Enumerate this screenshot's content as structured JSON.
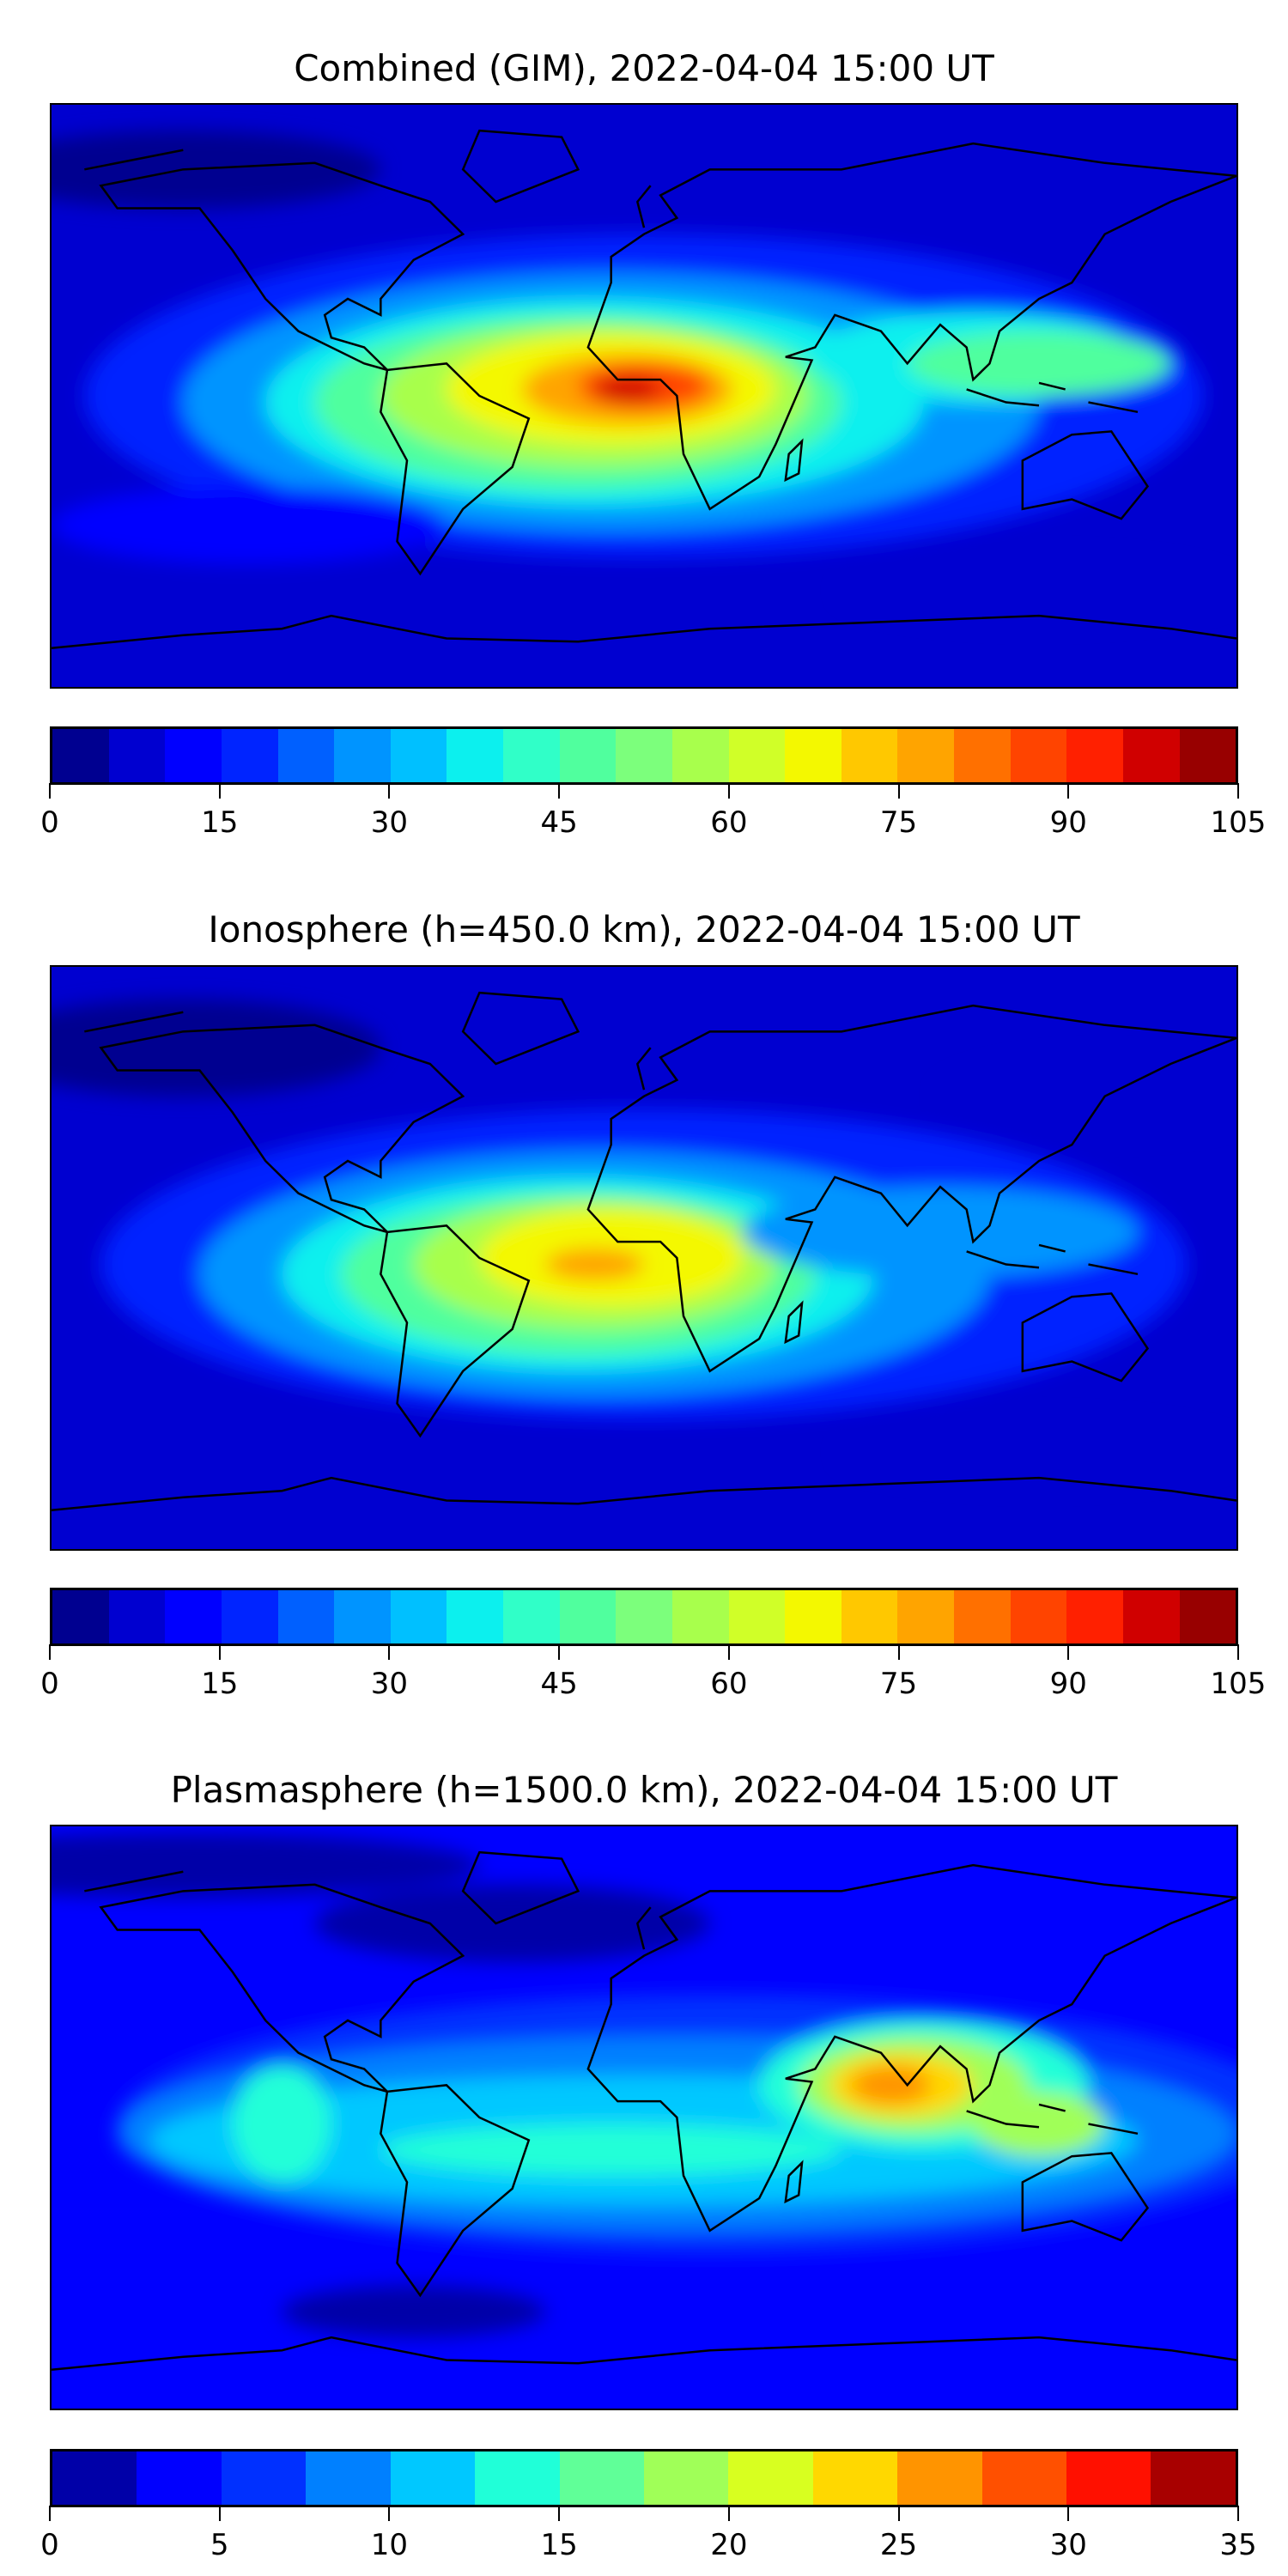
{
  "chart_data": [
    {
      "type": "heatmap",
      "projection": "equirectangular world map with coastlines",
      "title": "Combined (GIM), 2022-04-04 15:00 UT",
      "colormap": "jet",
      "colorbar": {
        "min": 0,
        "max": 105,
        "step": 5,
        "ticks": [
          "0",
          "15",
          "30",
          "45",
          "60",
          "75",
          "90",
          "105"
        ],
        "colors": [
          "#000090",
          "#0000d0",
          "#0000ff",
          "#0024ff",
          "#0060ff",
          "#0094ff",
          "#00c0ff",
          "#0cf0ee",
          "#30ffc8",
          "#50ff9e",
          "#7cff7c",
          "#a8ff4c",
          "#d0ff28",
          "#f4f800",
          "#ffc800",
          "#ffa400",
          "#ff7000",
          "#ff4400",
          "#ff2000",
          "#d00000",
          "#980000"
        ]
      },
      "peak": {
        "approx_value": 90,
        "location": "equatorial West Africa / Gulf of Guinea"
      }
    },
    {
      "type": "heatmap",
      "projection": "equirectangular world map with coastlines",
      "title": "Ionosphere  (h=450.0 km), 2022-04-04 15:00 UT",
      "colormap": "jet",
      "colorbar": {
        "min": 0,
        "max": 105,
        "step": 5,
        "ticks": [
          "0",
          "15",
          "30",
          "45",
          "60",
          "75",
          "90",
          "105"
        ],
        "colors": [
          "#000090",
          "#0000d0",
          "#0000ff",
          "#0024ff",
          "#0060ff",
          "#0094ff",
          "#00c0ff",
          "#0cf0ee",
          "#30ffc8",
          "#50ff9e",
          "#7cff7c",
          "#a8ff4c",
          "#d0ff28",
          "#f4f800",
          "#ffc800",
          "#ffa400",
          "#ff7000",
          "#ff4400",
          "#ff2000",
          "#d00000",
          "#980000"
        ]
      },
      "peak": {
        "approx_value": 75,
        "location": "equatorial Atlantic / West Africa"
      }
    },
    {
      "type": "heatmap",
      "projection": "equirectangular world map with coastlines",
      "title": "Plasmasphere (h=1500.0 km), 2022-04-04 15:00 UT",
      "colormap": "jet",
      "colorbar": {
        "min": 0,
        "max": 35,
        "step": 2.5,
        "ticks": [
          "0",
          "5",
          "10",
          "15",
          "20",
          "25",
          "30",
          "35"
        ],
        "colors": [
          "#0000a8",
          "#0000ff",
          "#0030ff",
          "#0080ff",
          "#00c8ff",
          "#20ffd8",
          "#60ff98",
          "#a0ff58",
          "#d8ff20",
          "#ffd800",
          "#ff9400",
          "#ff5000",
          "#ff1000",
          "#a80000"
        ]
      },
      "peak": {
        "approx_value": 27,
        "location": "India / Bay of Bengal"
      }
    }
  ]
}
